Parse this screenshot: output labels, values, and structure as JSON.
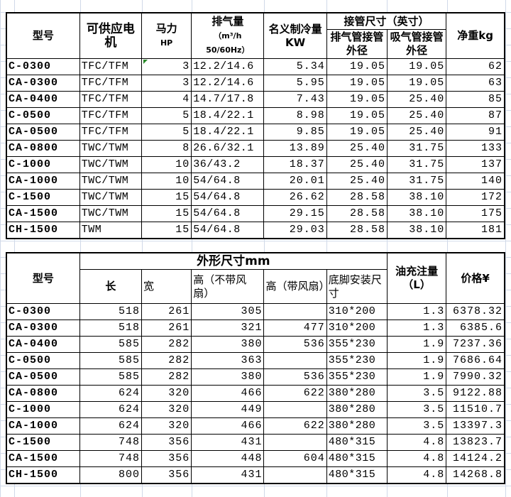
{
  "table1": {
    "headers": {
      "model": "型号",
      "motor": "可供应电机",
      "hp": "马力",
      "hp_unit": "HP",
      "displacement": "排气量",
      "displacement_unit": "（m³/h",
      "displacement_freq": "50/60Hz）",
      "cooling": "名义制冷量KW",
      "pipe_group": "接管尺寸（英寸）",
      "discharge": "排气管接管外径",
      "suction": "吸气管接管外径",
      "weight": "净重kg"
    },
    "rows": [
      [
        "C-0300",
        "TFC/TFM",
        "3",
        "12.2/14.6",
        "5.34",
        "19.05",
        "19.05",
        "62"
      ],
      [
        "CA-0300",
        "TFC/TFM",
        "3",
        "12.2/14.6",
        "5.95",
        "19.05",
        "19.05",
        "63"
      ],
      [
        "CA-0400",
        "TFC/TFM",
        "4",
        "14.7/17.8",
        "7.43",
        "19.05",
        "25.40",
        "85"
      ],
      [
        "C-0500",
        "TFC/TFM",
        "5",
        "18.4/22.1",
        "8.98",
        "19.05",
        "25.40",
        "87"
      ],
      [
        "CA-0500",
        "TFC/TFM",
        "5",
        "18.4/22.1",
        "9.85",
        "19.05",
        "25.40",
        "91"
      ],
      [
        "CA-0800",
        "TWC/TWM",
        "8",
        "26.6/32.1",
        "13.89",
        "25.40",
        "31.75",
        "133"
      ],
      [
        "C-1000",
        "TWC/TWM",
        "10",
        "36/43.2",
        "18.37",
        "25.40",
        "31.75",
        "137"
      ],
      [
        "CA-1000",
        "TWC/TWM",
        "10",
        "54/64.8",
        "20.01",
        "25.40",
        "31.75",
        "140"
      ],
      [
        "C-1500",
        "TWC/TWM",
        "15",
        "54/64.8",
        "26.62",
        "28.58",
        "38.10",
        "172"
      ],
      [
        "CA-1500",
        "TWC/TWM",
        "15",
        "54/64.8",
        "29.15",
        "28.58",
        "38.10",
        "175"
      ],
      [
        "CH-1500",
        "TWM",
        "15",
        "54/64.8",
        "29.03",
        "28.58",
        "38.10",
        "181"
      ]
    ]
  },
  "table2": {
    "headers": {
      "model": "型号",
      "dims_group": "外形尺寸mm",
      "length": "长",
      "width": "宽",
      "height_nofan": "高（不带风扇）",
      "height_fan": "高（带风扇）",
      "mount": "底脚安装尺寸",
      "oil": "油充注量（L）",
      "price": "价格¥"
    },
    "rows": [
      [
        "C-0300",
        "518",
        "261",
        "305",
        "",
        "310*200",
        "1.3",
        "6378.32"
      ],
      [
        "CA-0300",
        "518",
        "261",
        "321",
        "477",
        "310*200",
        "1.3",
        "6385.6"
      ],
      [
        "CA-0400",
        "585",
        "282",
        "380",
        "536",
        "355*230",
        "1.9",
        "7237.36"
      ],
      [
        "C-0500",
        "585",
        "282",
        "363",
        "",
        "355*230",
        "1.9",
        "7686.64"
      ],
      [
        "CA-0500",
        "585",
        "282",
        "380",
        "536",
        "355*230",
        "1.9",
        "7990.32"
      ],
      [
        "CA-0800",
        "624",
        "320",
        "466",
        "622",
        "380*280",
        "3.5",
        "9122.88"
      ],
      [
        "C-1000",
        "624",
        "320",
        "449",
        "",
        "380*280",
        "3.5",
        "11510.7"
      ],
      [
        "CA-1000",
        "624",
        "320",
        "466",
        "622",
        "380*280",
        "3.5",
        "13397.3"
      ],
      [
        "C-1500",
        "748",
        "356",
        "431",
        "",
        "480*315",
        "4.8",
        "13823.7"
      ],
      [
        "CA-1500",
        "748",
        "356",
        "448",
        "604",
        "480*315",
        "4.8",
        "14124.2"
      ],
      [
        "CH-1500",
        "800",
        "356",
        "431",
        "",
        "480*315",
        "4.8",
        "14268.8"
      ]
    ]
  }
}
